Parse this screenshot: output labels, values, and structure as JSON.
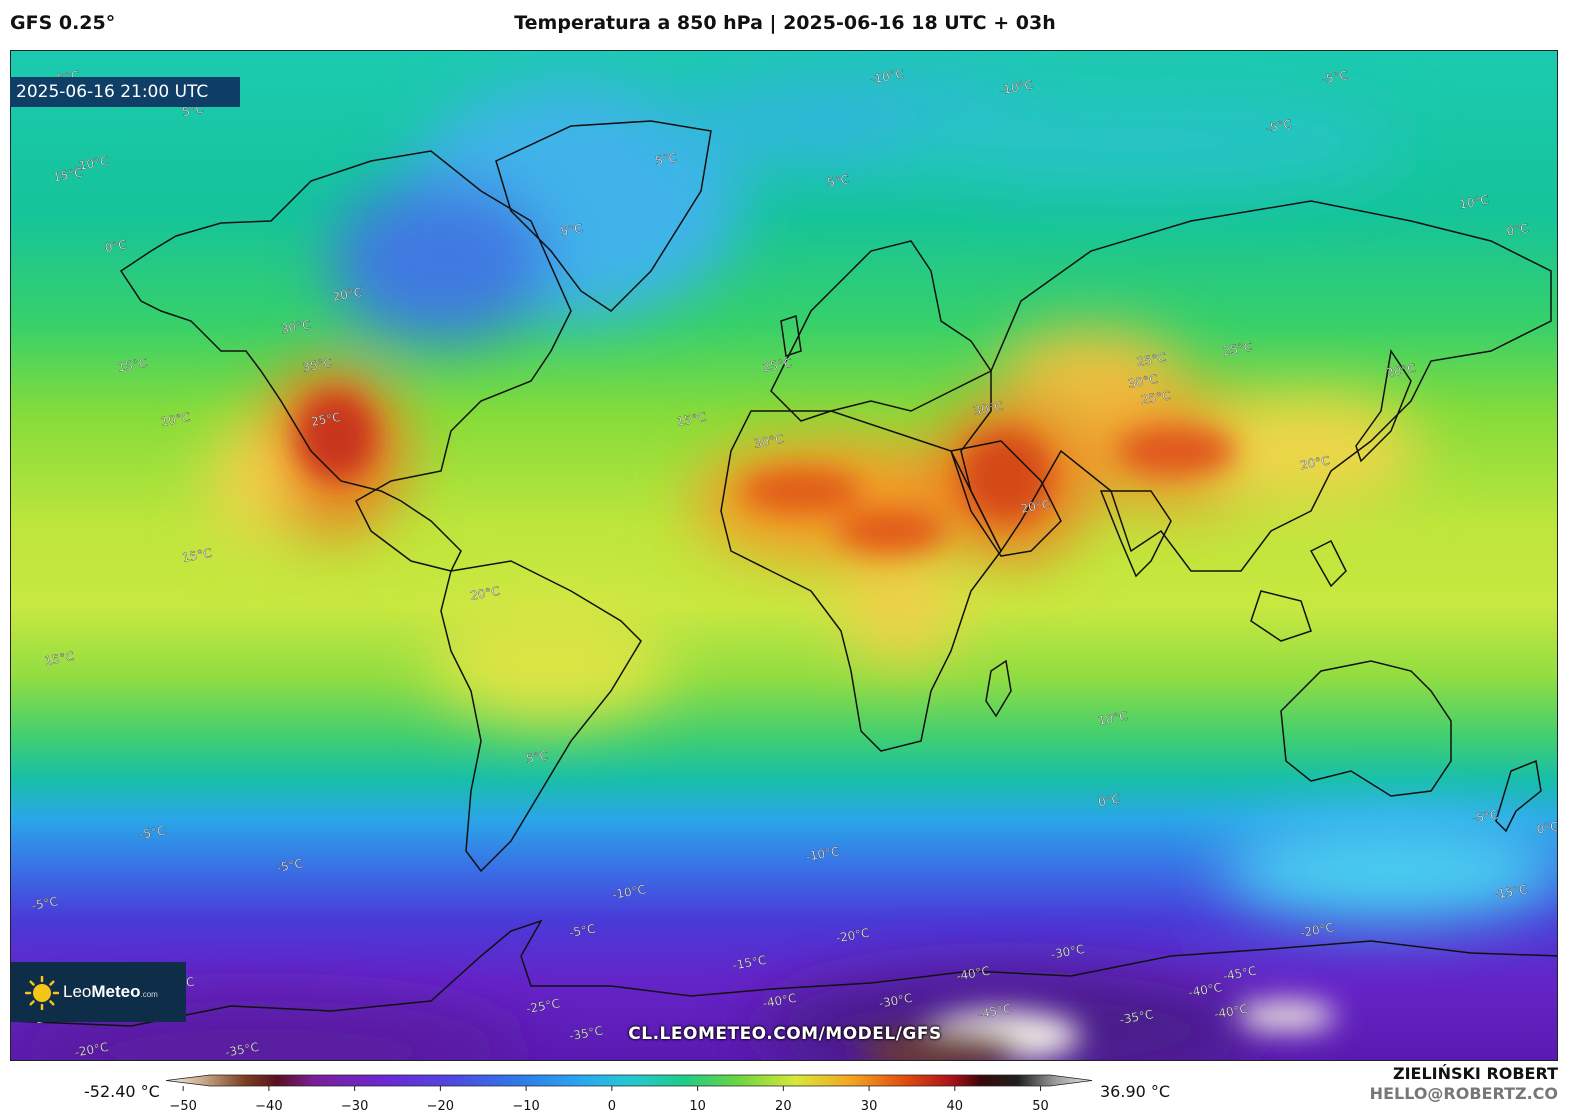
{
  "header": {
    "model": "GFS 0.25°",
    "title": "Temperatura a 850 hPa | 2025-06-16 18 UTC + 03h"
  },
  "map": {
    "valid_time": "2025-06-16 21:00 UTC",
    "url": "CL.LEOMETEO.COM/MODEL/GFS",
    "contour_labels": [
      {
        "text": "-5°C",
        "lon": -170,
        "lat": 83
      },
      {
        "text": "0°C",
        "lon": -163,
        "lat": 80
      },
      {
        "text": "5°C",
        "lon": -140,
        "lat": 77
      },
      {
        "text": "-10°C",
        "lon": -165,
        "lat": 67
      },
      {
        "text": "15°C",
        "lon": -170,
        "lat": 65
      },
      {
        "text": "0°C",
        "lon": -158,
        "lat": 52
      },
      {
        "text": "5°C",
        "lon": -30,
        "lat": 68
      },
      {
        "text": "5°C",
        "lon": -52,
        "lat": 55
      },
      {
        "text": "-10°C",
        "lon": 20,
        "lat": 83
      },
      {
        "text": "-10°C",
        "lon": 50,
        "lat": 81
      },
      {
        "text": "5°C",
        "lon": 10,
        "lat": 64
      },
      {
        "text": "-5°C",
        "lon": 125,
        "lat": 83
      },
      {
        "text": "-5°C",
        "lon": 112,
        "lat": 74
      },
      {
        "text": "10°C",
        "lon": 157,
        "lat": 60
      },
      {
        "text": "0°C",
        "lon": 168,
        "lat": 55
      },
      {
        "text": "20°C",
        "lon": -105,
        "lat": 43
      },
      {
        "text": "30°C",
        "lon": -117,
        "lat": 37
      },
      {
        "text": "35°C",
        "lon": -112,
        "lat": 30
      },
      {
        "text": "25°C",
        "lon": -110,
        "lat": 20
      },
      {
        "text": "15°C",
        "lon": -155,
        "lat": 30
      },
      {
        "text": "10°C",
        "lon": -145,
        "lat": 20
      },
      {
        "text": "15°C",
        "lon": -25,
        "lat": 20
      },
      {
        "text": "25°C",
        "lon": -5,
        "lat": 30
      },
      {
        "text": "30°C",
        "lon": -7,
        "lat": 16
      },
      {
        "text": "30°C",
        "lon": 44,
        "lat": 22
      },
      {
        "text": "20°C",
        "lon": 55,
        "lat": 4
      },
      {
        "text": "25°C",
        "lon": 82,
        "lat": 31
      },
      {
        "text": "30°C",
        "lon": 80,
        "lat": 27
      },
      {
        "text": "25°C",
        "lon": 83,
        "lat": 24
      },
      {
        "text": "25°C",
        "lon": 102,
        "lat": 33
      },
      {
        "text": "20°C",
        "lon": 140,
        "lat": 29
      },
      {
        "text": "20°C",
        "lon": 120,
        "lat": 12
      },
      {
        "text": "15°C",
        "lon": -140,
        "lat": -5
      },
      {
        "text": "20°C",
        "lon": -73,
        "lat": -12
      },
      {
        "text": "15°C",
        "lon": -172,
        "lat": -24
      },
      {
        "text": "10°C",
        "lon": 73,
        "lat": -35
      },
      {
        "text": "5°C",
        "lon": -60,
        "lat": -42
      },
      {
        "text": "0°C",
        "lon": 73,
        "lat": -50
      },
      {
        "text": "-5°C",
        "lon": 160,
        "lat": -53
      },
      {
        "text": "0°C",
        "lon": 175,
        "lat": -55
      },
      {
        "text": "-5°C",
        "lon": -150,
        "lat": -56
      },
      {
        "text": "-10°C",
        "lon": 5,
        "lat": -60
      },
      {
        "text": "-5°C",
        "lon": -118,
        "lat": -62
      },
      {
        "text": "-10°C",
        "lon": -40,
        "lat": -67
      },
      {
        "text": "-5°C",
        "lon": -175,
        "lat": -69
      },
      {
        "text": "-15°C",
        "lon": 165,
        "lat": -67
      },
      {
        "text": "-5°C",
        "lon": -50,
        "lat": -74
      },
      {
        "text": "-20°C",
        "lon": 12,
        "lat": -75
      },
      {
        "text": "-20°C",
        "lon": 120,
        "lat": -74
      },
      {
        "text": "-15°C",
        "lon": -12,
        "lat": -80
      },
      {
        "text": "-30°C",
        "lon": 62,
        "lat": -78
      },
      {
        "text": "-40°C",
        "lon": 40,
        "lat": -82
      },
      {
        "text": "-45°C",
        "lon": 102,
        "lat": -82
      },
      {
        "text": "-40°C",
        "lon": 94,
        "lat": -85
      },
      {
        "text": "-25°C",
        "lon": -145,
        "lat": -84
      },
      {
        "text": "-25°C",
        "lon": -155,
        "lat": -87
      },
      {
        "text": "-40°C",
        "lon": -5,
        "lat": -87
      },
      {
        "text": "-30°C",
        "lon": 22,
        "lat": -87
      },
      {
        "text": "-45°C",
        "lon": 45,
        "lat": -89
      },
      {
        "text": "-25°C",
        "lon": -60,
        "lat": -88
      },
      {
        "text": "-35°C",
        "lon": 78,
        "lat": -90
      },
      {
        "text": "-40°C",
        "lon": 100,
        "lat": -89
      },
      {
        "text": "-20°C",
        "lon": -175,
        "lat": -90
      },
      {
        "text": "-35°C",
        "lon": -50,
        "lat": -93
      },
      {
        "text": "-20°C",
        "lon": -165,
        "lat": -96
      },
      {
        "text": "-35°C",
        "lon": -130,
        "lat": -96
      }
    ]
  },
  "colorbar": {
    "min_label": "-52.40 °C",
    "max_label": "36.90 °C",
    "ticks": [
      "−50",
      "−40",
      "−30",
      "−20",
      "−10",
      "0",
      "10",
      "20",
      "30",
      "40",
      "50"
    ],
    "range": [
      -52,
      56
    ]
  },
  "logo": {
    "brand_light": "Leo",
    "brand_bold": "Meteo",
    "brand_suffix": ".com"
  },
  "author": {
    "name": "ZIELIŃSKI ROBERT",
    "email": "HELLO@ROBERTZ.CO"
  },
  "colors": {
    "frame": "#222222",
    "badge_bg": "#0f3f66",
    "logo_bg": "#0e2d49"
  }
}
